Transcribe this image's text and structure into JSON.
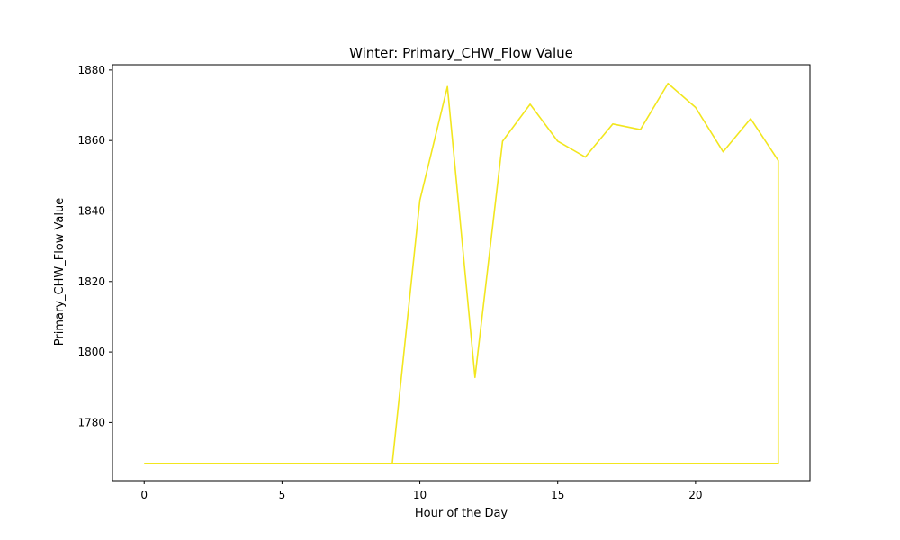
{
  "chart_data": {
    "type": "line",
    "title": "Winter: Primary_CHW_Flow Value",
    "xlabel": "Hour of the Day",
    "ylabel": "Primary_CHW_Flow Value",
    "xlim": [
      -1.15,
      24.15
    ],
    "ylim": [
      1763.5,
      1881.5
    ],
    "xticks": [
      0,
      5,
      10,
      15,
      20
    ],
    "yticks": [
      1780,
      1800,
      1820,
      1840,
      1860,
      1880
    ],
    "grid": false,
    "legend": "none",
    "series": [
      {
        "color": "#f2e61e",
        "x": [
          0,
          1,
          2,
          3,
          4,
          5,
          6,
          7,
          8,
          9,
          10,
          11,
          12,
          13,
          14,
          15,
          16,
          17,
          18,
          19,
          20,
          21,
          22,
          23,
          23,
          22,
          21,
          20,
          19,
          18,
          17,
          16,
          15,
          14,
          13,
          12,
          11,
          10,
          9,
          8,
          7,
          6,
          5,
          4,
          3,
          2,
          1,
          0
        ],
        "values": [
          1768.4,
          1768.4,
          1768.4,
          1768.4,
          1768.4,
          1768.4,
          1768.4,
          1768.4,
          1768.4,
          1768.4,
          1843,
          1875.3,
          1792.8,
          1859.8,
          1870.3,
          1859.8,
          1855.3,
          1864.7,
          1863.1,
          1876.2,
          1869.4,
          1856.8,
          1866.2,
          1854.3,
          1768.4,
          1768.4,
          1768.4,
          1768.4,
          1768.4,
          1768.4,
          1768.4,
          1768.4,
          1768.4,
          1768.4,
          1768.4,
          1768.4,
          1768.4,
          1768.4,
          1768.4,
          1768.4,
          1768.4,
          1768.4,
          1768.4,
          1768.4,
          1768.4,
          1768.4,
          1768.4,
          1768.4
        ]
      }
    ]
  }
}
